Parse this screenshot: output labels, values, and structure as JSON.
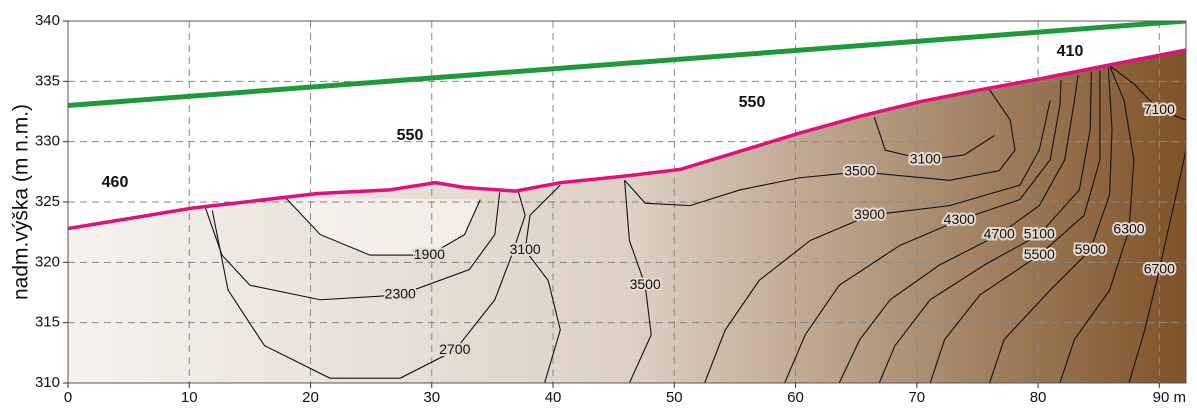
{
  "chart_data": {
    "type": "contour",
    "ylabel": "nadm.výška (m n.m.)",
    "xlim": [
      0,
      92.2
    ],
    "ylim": [
      310,
      340
    ],
    "xticks": [
      0,
      10,
      20,
      30,
      40,
      50,
      60,
      70,
      80,
      {
        "value": 90,
        "label": "90 m"
      }
    ],
    "yticks": [
      310,
      315,
      320,
      325,
      330,
      335,
      340
    ],
    "grid": true,
    "fill_colors": [
      "#f6f2ee",
      "#ddd1c5",
      "#7f5328"
    ],
    "contour_color": "#111111",
    "surface": {
      "color": "#e0107f",
      "x": [
        0,
        10.3,
        20.6,
        26.5,
        30.3,
        32.7,
        36.9,
        40.6,
        45.5,
        50.5,
        55.4,
        60.3,
        65.3,
        70.2,
        75.2,
        80.1,
        85.1,
        92.2
      ],
      "y": [
        322.8,
        324.5,
        325.7,
        326.0,
        326.6,
        326.2,
        325.9,
        326.6,
        327.1,
        327.7,
        329.2,
        330.7,
        332.1,
        333.3,
        334.3,
        335.2,
        336.2,
        337.6
      ]
    },
    "upper_line": {
      "color": "#1f9a3a",
      "x": [
        0,
        92.2
      ],
      "y": [
        333,
        340
      ]
    },
    "annotations": [
      "460",
      "550",
      "550",
      "410"
    ],
    "contours": [
      {
        "level": 1900,
        "x": [
          17.9,
          20.8,
          24.9,
          29.8,
          32.7,
          34.0
        ],
        "y": [
          325.4,
          322.3,
          320.6,
          320.6,
          322.3,
          325.2
        ]
      },
      {
        "level": 2300,
        "x": [
          11.3,
          12.7,
          15.0,
          20.8,
          27.4,
          33.1,
          35.2,
          35.6
        ],
        "y": [
          324.6,
          320.6,
          318.1,
          316.9,
          317.3,
          319.4,
          322.3,
          325.8
        ]
      },
      {
        "level": 2700,
        "x": [
          11.9,
          13.2,
          16.2,
          21.6,
          27.4,
          31.9,
          35.2,
          36.6,
          37.7,
          37.1
        ],
        "y": [
          324.3,
          317.7,
          313.1,
          310.4,
          310.4,
          312.7,
          316.9,
          320.6,
          323.9,
          326.0
        ]
      },
      {
        "level": 3100,
        "x": [
          39.3,
          40.6,
          39.6,
          37.7,
          38.1,
          40.6
        ],
        "y": [
          310,
          314.4,
          318.5,
          321.0,
          323.9,
          326.4
        ]
      },
      {
        "level": 3100,
        "x": [
          66.5,
          67.4,
          70.7,
          73.9,
          76.4
        ],
        "y": [
          332.0,
          329.3,
          328.5,
          328.9,
          330.5
        ]
      },
      {
        "level": 3500,
        "x": [
          46.3,
          48.1,
          47.6,
          46.3,
          45.9
        ],
        "y": [
          310,
          314.0,
          318.1,
          321.8,
          326.8
        ]
      },
      {
        "level": 3500,
        "x": [
          45.9,
          47.6,
          51.3,
          55.4,
          60.3,
          65.3,
          72.7,
          76.8,
          78.1,
          77.7,
          76.0
        ],
        "y": [
          326.8,
          324.9,
          324.7,
          326.0,
          327.0,
          327.5,
          326.8,
          327.6,
          329.3,
          331.8,
          334.3
        ]
      },
      {
        "level": 3900,
        "x": [
          52.5,
          54.2,
          57.0,
          61.2,
          66.1,
          72.7,
          78.5,
          80.1,
          81.0
        ],
        "y": [
          310,
          314.4,
          318.5,
          321.8,
          323.9,
          324.7,
          326.4,
          329.3,
          333.4
        ]
      },
      {
        "level": 4300,
        "x": [
          59.1,
          60.8,
          63.6,
          68.6,
          73.5,
          78.5,
          81.0,
          81.8,
          81.9
        ],
        "y": [
          310,
          314.0,
          318.1,
          321.4,
          323.5,
          325.2,
          328.5,
          333.0,
          335.1
        ]
      },
      {
        "level": 4700,
        "x": [
          63.6,
          65.3,
          67.8,
          71.9,
          76.8,
          80.1,
          82.2,
          83.0,
          83.3
        ],
        "y": [
          310,
          313.6,
          316.9,
          319.8,
          322.3,
          324.7,
          328.5,
          333.4,
          335.5
        ]
      },
      {
        "level": 5100,
        "x": [
          66.9,
          68.2,
          71.1,
          75.6,
          80.1,
          83.4,
          84.3,
          84.4
        ],
        "y": [
          310,
          313.1,
          316.9,
          319.8,
          322.3,
          326.0,
          331.0,
          335.8
        ]
      },
      {
        "level": 5500,
        "x": [
          71.1,
          72.3,
          75.2,
          80.1,
          83.8,
          85.1,
          85.1
        ],
        "y": [
          310,
          313.6,
          317.3,
          320.6,
          323.9,
          328.5,
          335.9
        ]
      },
      {
        "level": 5900,
        "x": [
          76.0,
          77.2,
          81.0,
          84.3,
          85.9,
          86.1,
          85.8
        ],
        "y": [
          310,
          313.6,
          317.7,
          321.0,
          325.6,
          331.0,
          336.1
        ]
      },
      {
        "level": 6300,
        "x": [
          81.8,
          83.0,
          85.9,
          87.5,
          87.9,
          87.1,
          85.9
        ],
        "y": [
          310,
          313.6,
          317.7,
          322.7,
          328.5,
          333.4,
          336.3
        ]
      },
      {
        "level": 6700,
        "x": [
          87.5,
          88.8,
          90.0,
          91.3,
          92.2
        ],
        "y": [
          310,
          314.4,
          319.4,
          325.2,
          329.3
        ]
      },
      {
        "level": 7100,
        "x": [
          85.9,
          88.0,
          90.0,
          92.2
        ],
        "y": [
          336.3,
          334.7,
          332.6,
          331.8
        ]
      }
    ]
  }
}
